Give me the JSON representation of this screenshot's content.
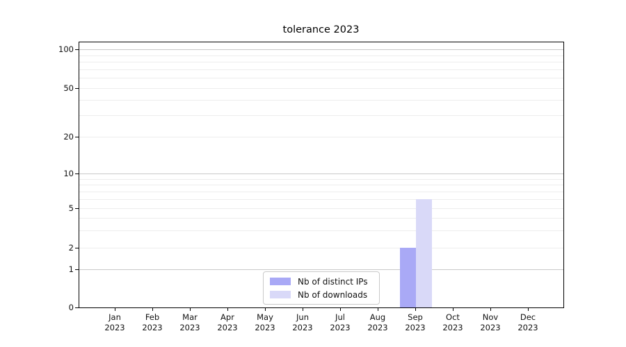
{
  "chart_data": {
    "type": "bar",
    "title": "tolerance 2023",
    "x_months": [
      "Jan",
      "Feb",
      "Mar",
      "Apr",
      "May",
      "Jun",
      "Jul",
      "Aug",
      "Sep",
      "Oct",
      "Nov",
      "Dec"
    ],
    "x_year": "2023",
    "xlabel": "",
    "ylabel": "",
    "y_scale": "symlog",
    "y_ticks": [
      0,
      1,
      2,
      5,
      10,
      20,
      50,
      100
    ],
    "ylim": [
      0,
      115
    ],
    "grid": true,
    "legend_position": "lower center",
    "series": [
      {
        "name": "Nb of distinct IPs",
        "color": "#a9a9f6",
        "values": [
          0,
          0,
          0,
          0,
          0,
          0,
          0,
          0,
          2,
          0,
          0,
          0
        ]
      },
      {
        "name": "Nb of downloads",
        "color": "#d9d9f8",
        "values": [
          0,
          0,
          0,
          0,
          0,
          0,
          0,
          0,
          6,
          0,
          0,
          0
        ]
      }
    ]
  },
  "colors": {
    "background": "#ffffff",
    "axis": "#000000",
    "text": "#111111",
    "major_grid": "#c8c8c8",
    "minor_grid": "#ededed"
  }
}
